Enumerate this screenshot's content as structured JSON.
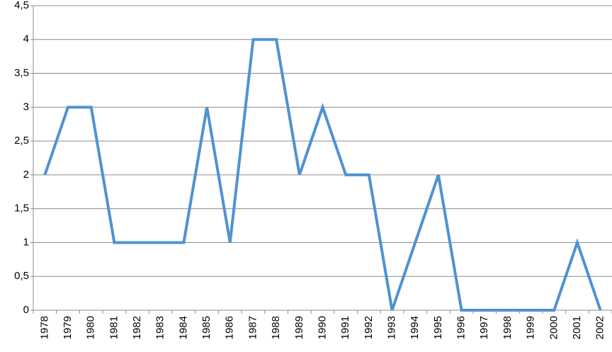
{
  "chart_data": {
    "type": "line",
    "categories": [
      "1978",
      "1979",
      "1980",
      "1981",
      "1982",
      "1983",
      "1984",
      "1985",
      "1986",
      "1987",
      "1988",
      "1989",
      "1990",
      "1991",
      "1992",
      "1993",
      "1994",
      "1995",
      "1996",
      "1997",
      "1998",
      "1999",
      "2000",
      "2001",
      "2002"
    ],
    "values": [
      2,
      3,
      3,
      1,
      1,
      1,
      1,
      3,
      1,
      4,
      4,
      2,
      3,
      2,
      2,
      0,
      1,
      2,
      0,
      0,
      0,
      0,
      0,
      1,
      0
    ],
    "color": "#4f93d1",
    "ylim": [
      0,
      4.5
    ],
    "yticks": [
      0,
      {
        "value": 0.5,
        "label": "0,5"
      },
      1,
      {
        "value": 1.5,
        "label": "1,5"
      },
      2,
      {
        "value": 2.5,
        "label": "2,5"
      },
      3,
      {
        "value": 3.5,
        "label": "3,5"
      },
      4,
      {
        "value": 4.5,
        "label": "4,5"
      }
    ],
    "grid": true
  }
}
